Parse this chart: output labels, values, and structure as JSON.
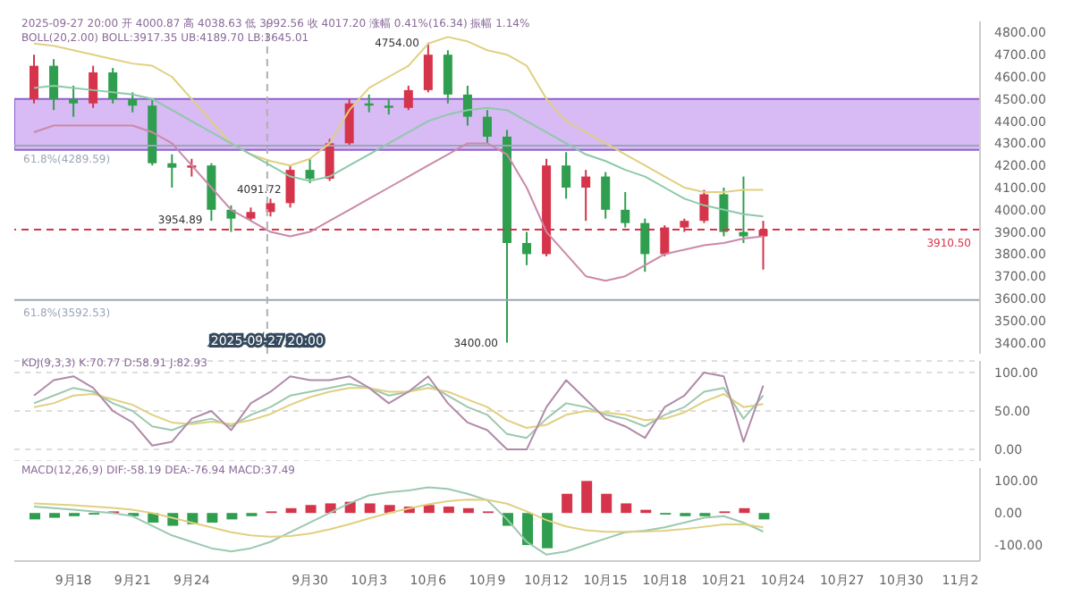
{
  "chart_data": [
    {
      "type": "candlestick",
      "x": [
        "2025-09-16",
        "2025-09-17",
        "2025-09-18",
        "2025-09-19",
        "2025-09-20",
        "2025-09-21",
        "2025-09-22",
        "2025-09-23",
        "2025-09-24",
        "2025-09-25",
        "2025-09-26",
        "2025-09-27",
        "2025-09-28",
        "2025-09-29",
        "2025-09-30",
        "2025-10-01",
        "2025-10-02",
        "2025-10-03",
        "2025-10-04",
        "2025-10-05",
        "2025-10-06",
        "2025-10-07",
        "2025-10-08",
        "2025-10-09",
        "2025-10-10",
        "2025-10-11",
        "2025-10-12",
        "2025-10-13",
        "2025-10-14",
        "2025-10-15",
        "2025-10-16",
        "2025-10-17",
        "2025-10-18",
        "2025-10-19",
        "2025-10-20",
        "2025-10-21",
        "2025-10-22",
        "2025-10-23"
      ],
      "ohlc": [
        [
          4500,
          4700,
          4480,
          4650
        ],
        [
          4650,
          4680,
          4450,
          4500
        ],
        [
          4500,
          4560,
          4420,
          4480
        ],
        [
          4480,
          4650,
          4460,
          4620
        ],
        [
          4620,
          4640,
          4480,
          4500
        ],
        [
          4500,
          4530,
          4440,
          4470
        ],
        [
          4470,
          4500,
          4200,
          4210
        ],
        [
          4210,
          4250,
          4100,
          4190
        ],
        [
          4190,
          4230,
          4150,
          4200
        ],
        [
          4200,
          4210,
          3950,
          4000
        ],
        [
          4000,
          4020,
          3900,
          3960
        ],
        [
          3960,
          4010,
          3950,
          3990
        ],
        [
          3990,
          4050,
          3970,
          4030
        ],
        [
          4030,
          4200,
          4010,
          4180
        ],
        [
          4180,
          4230,
          4120,
          4140
        ],
        [
          4140,
          4320,
          4130,
          4300
        ],
        [
          4300,
          4500,
          4290,
          4480
        ],
        [
          4480,
          4520,
          4440,
          4470
        ],
        [
          4470,
          4500,
          4430,
          4460
        ],
        [
          4460,
          4560,
          4450,
          4540
        ],
        [
          4540,
          4754,
          4530,
          4700
        ],
        [
          4700,
          4720,
          4480,
          4520
        ],
        [
          4520,
          4560,
          4380,
          4420
        ],
        [
          4420,
          4450,
          4300,
          4330
        ],
        [
          4330,
          4360,
          3400,
          3850
        ],
        [
          3850,
          3900,
          3750,
          3800
        ],
        [
          3800,
          4230,
          3790,
          4200
        ],
        [
          4200,
          4260,
          4050,
          4100
        ],
        [
          4100,
          4180,
          3950,
          4150
        ],
        [
          4150,
          4170,
          3960,
          4000
        ],
        [
          4000,
          4080,
          3920,
          3940
        ],
        [
          3940,
          3960,
          3720,
          3800
        ],
        [
          3800,
          3930,
          3790,
          3920
        ],
        [
          3920,
          3960,
          3900,
          3950
        ],
        [
          3950,
          4090,
          3940,
          4070
        ],
        [
          4070,
          4100,
          3880,
          3900
        ],
        [
          3900,
          4150,
          3850,
          3880
        ],
        [
          3880,
          3950,
          3730,
          3910
        ]
      ],
      "colors": [
        "#d6344a",
        "#2f9e4f",
        "#2f9e4f",
        "#d6344a",
        "#2f9e4f",
        "#2f9e4f",
        "#2f9e4f",
        "#2f9e4f",
        "#d6344a",
        "#2f9e4f",
        "#2f9e4f",
        "#d6344a",
        "#d6344a",
        "#d6344a",
        "#2f9e4f",
        "#d6344a",
        "#d6344a",
        "#2f9e4f",
        "#2f9e4f",
        "#d6344a",
        "#d6344a",
        "#2f9e4f",
        "#2f9e4f",
        "#2f9e4f",
        "#2f9e4f",
        "#2f9e4f",
        "#d6344a",
        "#2f9e4f",
        "#d6344a",
        "#2f9e4f",
        "#2f9e4f",
        "#2f9e4f",
        "#d6344a",
        "#d6344a",
        "#d6344a",
        "#2f9e4f",
        "#2f9e4f",
        "#d6344a"
      ],
      "series": [
        {
          "type": "line",
          "color": "#e0d080",
          "values": [
            4750,
            4740,
            4720,
            4700,
            4680,
            4660,
            4650,
            4600,
            4500,
            4400,
            4300,
            4250,
            4220,
            4200,
            4230,
            4300,
            4450,
            4550,
            4600,
            4650,
            4750,
            4780,
            4760,
            4720,
            4700,
            4650,
            4500,
            4400,
            4350,
            4300,
            4250,
            4200,
            4150,
            4100,
            4080,
            4080,
            4090,
            4090
          ]
        },
        {
          "type": "line",
          "color": "#8cc9a8",
          "values": [
            4550,
            4560,
            4550,
            4540,
            4530,
            4520,
            4500,
            4450,
            4400,
            4350,
            4300,
            4250,
            4200,
            4150,
            4130,
            4150,
            4200,
            4250,
            4300,
            4350,
            4400,
            4430,
            4450,
            4460,
            4450,
            4400,
            4350,
            4300,
            4250,
            4220,
            4180,
            4150,
            4100,
            4050,
            4020,
            4000,
            3980,
            3970
          ]
        },
        {
          "type": "line",
          "color": "#c98aa8",
          "values": [
            4350,
            4380,
            4380,
            4380,
            4380,
            4380,
            4350,
            4300,
            4200,
            4100,
            4000,
            3950,
            3900,
            3880,
            3900,
            3950,
            4000,
            4050,
            4100,
            4150,
            4200,
            4250,
            4300,
            4300,
            4250,
            4100,
            3900,
            3800,
            3700,
            3680,
            3700,
            3750,
            3800,
            3820,
            3840,
            3850,
            3870,
            3880
          ]
        }
      ],
      "xlim": [
        "2025-09-15",
        "2025-11-03"
      ],
      "ylim": [
        3350,
        4850
      ],
      "yticks": [
        {
          "value": 3400,
          "label": "3400.00"
        },
        {
          "value": 3500,
          "label": "3500.00"
        },
        {
          "value": 3600,
          "label": "3600.00"
        },
        {
          "value": 3700,
          "label": "3700.00"
        },
        {
          "value": 3800,
          "label": "3800.00"
        },
        {
          "value": 3900,
          "label": "3900.00"
        },
        {
          "value": 4000,
          "label": "4000.00"
        },
        {
          "value": 4100,
          "label": "4100.00"
        },
        {
          "value": 4200,
          "label": "4200.00"
        },
        {
          "value": 4300,
          "label": "4300.00"
        },
        {
          "value": 4400,
          "label": "4400.00"
        },
        {
          "value": 4500,
          "label": "4500.00"
        },
        {
          "value": 4600,
          "label": "4600.00"
        },
        {
          "value": 4700,
          "label": "4700.00"
        },
        {
          "value": 4800,
          "label": "4800.00"
        }
      ],
      "tick_labels": "y",
      "grid": false,
      "bands": [
        {
          "axis": "y",
          "from": 4270,
          "to": 4500,
          "color": "#c89cf0"
        }
      ],
      "ref_lines": [
        {
          "axis": "y",
          "value": 4289.59,
          "label": "61.8%(4289.59)",
          "color": "#9aa6b8"
        },
        {
          "axis": "y",
          "value": 3592.53,
          "label": "61.8%(3592.53)",
          "color": "#9aa6b8"
        },
        {
          "axis": "y",
          "value": 3910.5,
          "label": "3910.50",
          "color": "#d6344a",
          "line_style": "dashed"
        },
        {
          "axis": "x",
          "value": "2025-09-27T20:00",
          "label": "2025-09-27 20:00",
          "color": "#b0b0b0",
          "line_style": "dashed"
        }
      ],
      "annotations": [
        "2025-09-27 20:00 开 4000.87 高 4038.63 低 3992.56 收 4017.20 涨幅 0.41%(16.34) 振幅 1.14%",
        "BOLL(20,2.00) BOLL:3917.35 UB:4189.70 LB:3645.01",
        {
          "text": "4754.00",
          "x": "2025-10-06",
          "y": 4754
        },
        {
          "text": "3400.00",
          "x": "2025-10-10",
          "y": 3400
        },
        {
          "text": "4091.72",
          "x": "2025-09-29",
          "y": 4091.72
        },
        {
          "text": "3954.89",
          "x": "2025-09-25",
          "y": 3954.89
        }
      ]
    },
    {
      "type": "line",
      "x": [
        "2025-09-16",
        "2025-09-17",
        "2025-09-18",
        "2025-09-19",
        "2025-09-20",
        "2025-09-21",
        "2025-09-22",
        "2025-09-23",
        "2025-09-24",
        "2025-09-25",
        "2025-09-26",
        "2025-09-27",
        "2025-09-28",
        "2025-09-29",
        "2025-09-30",
        "2025-10-01",
        "2025-10-02",
        "2025-10-03",
        "2025-10-04",
        "2025-10-05",
        "2025-10-06",
        "2025-10-07",
        "2025-10-08",
        "2025-10-09",
        "2025-10-10",
        "2025-10-11",
        "2025-10-12",
        "2025-10-13",
        "2025-10-14",
        "2025-10-15",
        "2025-10-16",
        "2025-10-17",
        "2025-10-18",
        "2025-10-19",
        "2025-10-20",
        "2025-10-21",
        "2025-10-22",
        "2025-10-23"
      ],
      "series": [
        {
          "color": "#9cc8b0",
          "values": [
            60,
            70,
            80,
            75,
            60,
            50,
            30,
            25,
            35,
            40,
            30,
            45,
            55,
            70,
            75,
            80,
            85,
            80,
            70,
            75,
            85,
            70,
            55,
            45,
            20,
            15,
            40,
            60,
            55,
            45,
            40,
            30,
            45,
            55,
            75,
            80,
            40,
            70
          ]
        },
        {
          "color": "#e0d080",
          "values": [
            55,
            60,
            70,
            72,
            65,
            58,
            45,
            35,
            33,
            36,
            33,
            38,
            46,
            58,
            68,
            75,
            80,
            80,
            75,
            75,
            80,
            75,
            65,
            55,
            38,
            28,
            32,
            45,
            50,
            48,
            45,
            38,
            40,
            48,
            62,
            72,
            55,
            59
          ]
        },
        {
          "color": "#b08aa8",
          "values": [
            70,
            90,
            95,
            80,
            50,
            35,
            5,
            10,
            40,
            50,
            25,
            60,
            75,
            95,
            90,
            90,
            95,
            80,
            60,
            75,
            95,
            60,
            35,
            25,
            0,
            0,
            55,
            90,
            65,
            40,
            30,
            15,
            55,
            70,
            100,
            95,
            10,
            83
          ]
        }
      ],
      "xlim": [
        "2025-09-15",
        "2025-11-03"
      ],
      "ylim": [
        -15,
        115
      ],
      "yticks": [
        {
          "value": 0,
          "label": "0.00"
        },
        {
          "value": 50,
          "label": "50.00"
        },
        {
          "value": 100,
          "label": "100.00"
        }
      ],
      "tick_labels": "y",
      "grid": "y",
      "annotations": [
        "KDJ(9,3,3) K:70.77 D:58.91 J:82.93"
      ]
    },
    {
      "type": "bar",
      "x": [
        "2025-09-16",
        "2025-09-17",
        "2025-09-18",
        "2025-09-19",
        "2025-09-20",
        "2025-09-21",
        "2025-09-22",
        "2025-09-23",
        "2025-09-24",
        "2025-09-25",
        "2025-09-26",
        "2025-09-27",
        "2025-09-28",
        "2025-09-29",
        "2025-09-30",
        "2025-10-01",
        "2025-10-02",
        "2025-10-03",
        "2025-10-04",
        "2025-10-05",
        "2025-10-06",
        "2025-10-07",
        "2025-10-08",
        "2025-10-09",
        "2025-10-10",
        "2025-10-11",
        "2025-10-12",
        "2025-10-13",
        "2025-10-14",
        "2025-10-15",
        "2025-10-16",
        "2025-10-17",
        "2025-10-18",
        "2025-10-19",
        "2025-10-20",
        "2025-10-21",
        "2025-10-22",
        "2025-10-23"
      ],
      "series": [
        {
          "type": "bar",
          "values": [
            -20,
            -15,
            -10,
            -5,
            5,
            -10,
            -30,
            -40,
            -35,
            -30,
            -20,
            -10,
            5,
            15,
            25,
            30,
            35,
            30,
            25,
            20,
            25,
            20,
            15,
            5,
            -40,
            -100,
            -110,
            60,
            100,
            60,
            30,
            10,
            -5,
            -10,
            -10,
            5,
            15,
            -20
          ],
          "colors": [
            "#2f9e4f",
            "#2f9e4f",
            "#2f9e4f",
            "#2f9e4f",
            "#d6344a",
            "#2f9e4f",
            "#2f9e4f",
            "#2f9e4f",
            "#2f9e4f",
            "#2f9e4f",
            "#2f9e4f",
            "#2f9e4f",
            "#d6344a",
            "#d6344a",
            "#d6344a",
            "#d6344a",
            "#d6344a",
            "#d6344a",
            "#d6344a",
            "#d6344a",
            "#d6344a",
            "#d6344a",
            "#d6344a",
            "#d6344a",
            "#2f9e4f",
            "#2f9e4f",
            "#2f9e4f",
            "#d6344a",
            "#d6344a",
            "#d6344a",
            "#d6344a",
            "#d6344a",
            "#2f9e4f",
            "#2f9e4f",
            "#2f9e4f",
            "#d6344a",
            "#d6344a",
            "#2f9e4f"
          ]
        },
        {
          "type": "line",
          "color": "#9cc8b0",
          "values": [
            20,
            15,
            10,
            5,
            0,
            -10,
            -40,
            -70,
            -90,
            -110,
            -120,
            -110,
            -90,
            -60,
            -30,
            0,
            30,
            55,
            65,
            70,
            80,
            75,
            60,
            40,
            -20,
            -90,
            -130,
            -120,
            -100,
            -80,
            -60,
            -55,
            -45,
            -30,
            -15,
            -10,
            -30,
            -58
          ]
        },
        {
          "type": "line",
          "color": "#e0d080",
          "values": [
            30,
            27,
            24,
            20,
            16,
            10,
            0,
            -15,
            -30,
            -45,
            -60,
            -70,
            -74,
            -72,
            -64,
            -51,
            -35,
            -17,
            0,
            14,
            27,
            37,
            42,
            41,
            29,
            5,
            -22,
            -42,
            -54,
            -59,
            -59,
            -58,
            -55,
            -50,
            -43,
            -36,
            -35,
            -45
          ]
        }
      ],
      "xlim": [
        "2025-09-15",
        "2025-11-03"
      ],
      "xticks": [
        {
          "value": "2025-09-18",
          "label": "9月18"
        },
        {
          "value": "2025-09-21",
          "label": "9月21"
        },
        {
          "value": "2025-09-24",
          "label": "9月24"
        },
        {
          "value": "2025-09-30",
          "label": "9月30"
        },
        {
          "value": "2025-10-03",
          "label": "10月3"
        },
        {
          "value": "2025-10-06",
          "label": "10月6"
        },
        {
          "value": "2025-10-09",
          "label": "10月9"
        },
        {
          "value": "2025-10-12",
          "label": "10月12"
        },
        {
          "value": "2025-10-15",
          "label": "10月15"
        },
        {
          "value": "2025-10-18",
          "label": "10月18"
        },
        {
          "value": "2025-10-21",
          "label": "10月21"
        },
        {
          "value": "2025-10-24",
          "label": "10月24"
        },
        {
          "value": "2025-10-27",
          "label": "10月27"
        },
        {
          "value": "2025-10-30",
          "label": "10月30"
        },
        {
          "value": "2025-11-02",
          "label": "11月2"
        }
      ],
      "ylim": [
        -150,
        140
      ],
      "yticks": [
        {
          "value": -100,
          "label": "-100.00"
        },
        {
          "value": 0,
          "label": "0.00"
        },
        {
          "value": 100,
          "label": "100.00"
        }
      ],
      "grid": false,
      "annotations": [
        "MACD(12,26,9) DIF:-58.19 DEA:-76.94 MACD:37.49"
      ]
    }
  ]
}
